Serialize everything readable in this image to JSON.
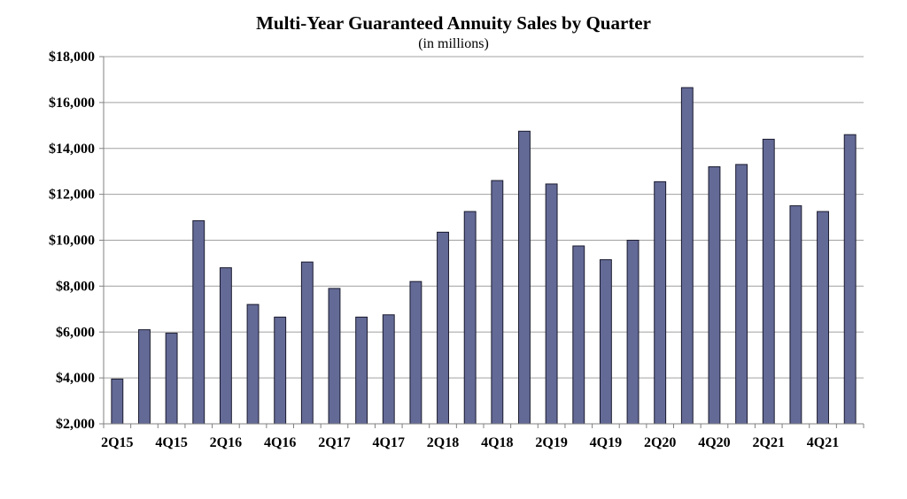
{
  "chart_data": {
    "type": "bar",
    "title": "Multi-Year Guaranteed Annuity Sales by Quarter",
    "subtitle": "(in millions)",
    "xlabel": "",
    "ylabel": "",
    "ylim": [
      2000,
      18000
    ],
    "yticks": [
      2000,
      4000,
      6000,
      8000,
      10000,
      12000,
      14000,
      16000,
      18000
    ],
    "ytick_labels": [
      "$2,000",
      "$4,000",
      "$6,000",
      "$8,000",
      "$10,000",
      "$12,000",
      "$14,000",
      "$16,000",
      "$18,000"
    ],
    "categories": [
      "2Q15",
      "3Q15",
      "4Q15",
      "1Q16",
      "2Q16",
      "3Q16",
      "4Q16",
      "1Q17",
      "2Q17",
      "3Q17",
      "4Q17",
      "1Q18",
      "2Q18",
      "3Q18",
      "4Q18",
      "1Q19",
      "2Q19",
      "3Q19",
      "4Q19",
      "1Q20",
      "2Q20",
      "3Q20",
      "4Q20",
      "1Q21",
      "2Q21",
      "3Q21",
      "4Q21",
      "1Q22"
    ],
    "visible_tick_labels": [
      "2Q15",
      "",
      "4Q15",
      "",
      "2Q16",
      "",
      "4Q16",
      "",
      "2Q17",
      "",
      "4Q17",
      "",
      "2Q18",
      "",
      "4Q18",
      "",
      "2Q19",
      "",
      "4Q19",
      "",
      "2Q20",
      "",
      "4Q20",
      "",
      "2Q21",
      "",
      "4Q21",
      ""
    ],
    "values": [
      3950,
      6100,
      5950,
      10850,
      8800,
      7200,
      6650,
      9050,
      7900,
      6650,
      6750,
      8200,
      10350,
      11250,
      12600,
      14750,
      12450,
      9750,
      9150,
      10000,
      12550,
      16650,
      13200,
      13300,
      14400,
      11500,
      11250,
      14600
    ],
    "grid": true,
    "colors": {
      "bar_fill": "#636a96",
      "bar_stroke": "#1a1a2e",
      "grid": "#a0a0a0",
      "axis": "#808080"
    }
  }
}
